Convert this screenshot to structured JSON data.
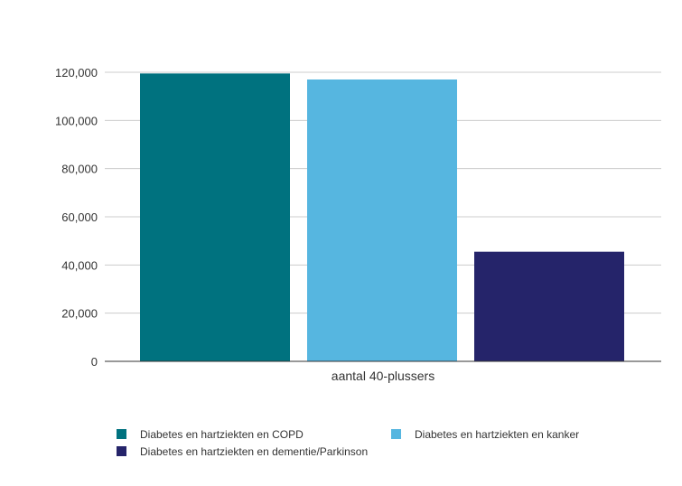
{
  "chart_data": {
    "type": "bar",
    "categories": [
      "aantal 40-plussers"
    ],
    "series": [
      {
        "name": "Diabetes en hartziekten en COPD",
        "values": [
          119500
        ],
        "color": "#00727F"
      },
      {
        "name": "Diabetes en hartziekten en kanker",
        "values": [
          117000
        ],
        "color": "#56B6E0"
      },
      {
        "name": "Diabetes en hartziekten en dementie/Parkinson",
        "values": [
          45500
        ],
        "color": "#25246A"
      }
    ],
    "yticks": [
      "0",
      "20,000",
      "40,000",
      "60,000",
      "80,000",
      "100,000",
      "120,000"
    ],
    "ylim": [
      0,
      120000
    ],
    "grid": true,
    "legend_position": "bottom"
  }
}
